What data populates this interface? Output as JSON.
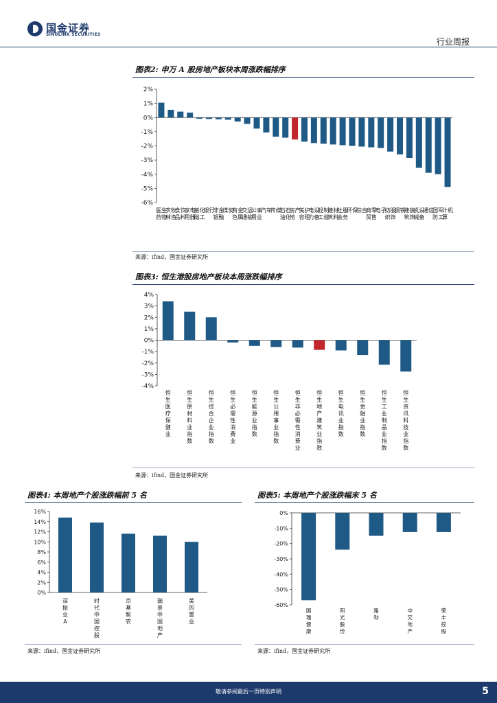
{
  "header": {
    "logo_cn": "国金证券",
    "logo_en": "SINOLINK SECURITIES",
    "report_type": "行业周报"
  },
  "figure2": {
    "title": "图表2:  申万 A 股房地产板块本周涨跌幅排序",
    "source": "来源：ifind，国金证券研究所"
  },
  "figure3": {
    "title": "图表3:  恒生港股房地产板块本周涨跌幅排序",
    "source": "来源：ifind，国金证券研究所"
  },
  "figure4": {
    "title": "图表4:  本周地产个股涨跌幅前 5 名",
    "source": "来源：ifind，国金证券研究所"
  },
  "figure5": {
    "title": "图表5:  本周地产个股涨跌幅末 5 名",
    "source": "来源：ifind，国金证券研究所"
  },
  "footer": {
    "disclaimer": "敬请参阅最后一页特别声明",
    "page_number": "5"
  },
  "colors": {
    "bar": "#1f5a86",
    "highlight": "#c0262b",
    "brand": "#1c3a6b"
  },
  "chart_data": [
    {
      "id": "chart2",
      "type": "bar",
      "title": "申万 A 股房地产板块本周涨跌幅排序",
      "categories": [
        "医药生物",
        "农林牧渔",
        "食品饮料",
        "家用电器",
        "基础化工",
        "银行",
        "非银金融",
        "煤炭",
        "有色金属",
        "交通运输",
        "公用事业",
        "汽车",
        "传媒",
        "石油石化",
        "房地产",
        "美容护理",
        "电力设备",
        "轻工制造",
        "建筑材料",
        "社会服务",
        "环保",
        "综合",
        "商贸零售",
        "电子",
        "纺织服饰",
        "钢铁",
        "建筑装饰",
        "机械设备",
        "通信",
        "国防军工",
        "计算机"
      ],
      "values": [
        1.05,
        0.55,
        0.42,
        0.35,
        -0.08,
        -0.1,
        -0.12,
        -0.15,
        -0.28,
        -0.45,
        -0.78,
        -1.05,
        -1.35,
        -1.42,
        -1.55,
        -1.7,
        -1.8,
        -1.85,
        -1.9,
        -1.95,
        -2.0,
        -2.05,
        -2.1,
        -2.15,
        -2.4,
        -2.6,
        -2.85,
        -3.55,
        -3.9,
        -4.0,
        -4.9
      ],
      "highlight": "房地产",
      "ylim": [
        -6,
        2
      ],
      "ticks": [
        2,
        1,
        0,
        -1,
        -2,
        -3,
        -4,
        -5,
        -6
      ],
      "tick_labels": [
        "2%",
        "1%",
        "0%",
        "-1%",
        "-2%",
        "-3%",
        "-4%",
        "-5%",
        "-6%"
      ]
    },
    {
      "id": "chart3",
      "type": "bar",
      "title": "恒生港股房地产板块本周涨跌幅排序",
      "categories": [
        "恒生医疗保健业",
        "恒生原材料业指数",
        "恒生综合企业指数",
        "恒生必需性消费业",
        "恒生能源业指数",
        "恒生公用事业指数",
        "恒生非必需性消费业",
        "恒生地产建筑业指数",
        "恒生电讯业指数",
        "恒生金融业指数",
        "恒生工业制品业指数",
        "恒生资讯科技业指数"
      ],
      "values": [
        3.4,
        2.5,
        2.0,
        -0.2,
        -0.5,
        -0.6,
        -0.65,
        -0.85,
        -0.9,
        -1.3,
        -2.15,
        -2.75
      ],
      "highlight": "恒生地产建筑业指数",
      "ylim": [
        -4,
        4
      ],
      "ticks": [
        4,
        3,
        2,
        1,
        0,
        -1,
        -2,
        -3,
        -4
      ],
      "tick_labels": [
        "4%",
        "3%",
        "2%",
        "1%",
        "0%",
        "-1%",
        "-2%",
        "-3%",
        "-4%"
      ]
    },
    {
      "id": "chart4",
      "type": "bar",
      "title": "本周地产个股涨跌幅前 5 名",
      "categories": [
        "深振业A",
        "时代中国控股",
        "京基智农",
        "瑞景中国地产",
        "美的置业"
      ],
      "values": [
        14.8,
        13.8,
        11.6,
        11.2,
        10.0
      ],
      "highlight": "",
      "ylim": [
        0,
        16
      ],
      "ticks": [
        16,
        14,
        12,
        10,
        8,
        6,
        4,
        2,
        0
      ],
      "tick_labels": [
        "16%",
        "14%",
        "12%",
        "10%",
        "8%",
        "6%",
        "4%",
        "2%",
        "0%"
      ]
    },
    {
      "id": "chart5",
      "type": "bar",
      "title": "本周地产个股涨跌幅末 5 名",
      "categories": [
        "国瑞健康",
        "阳光股份",
        "路劲",
        "中交地产",
        "荣丰控股"
      ],
      "values": [
        -57,
        -24,
        -15,
        -12.5,
        -12.5
      ],
      "highlight": "",
      "ylim": [
        -60,
        0
      ],
      "ticks": [
        0,
        -10,
        -20,
        -30,
        -40,
        -50,
        -60
      ],
      "tick_labels": [
        "0%",
        "-10%",
        "-20%",
        "-30%",
        "-40%",
        "-50%",
        "-60%"
      ]
    }
  ]
}
